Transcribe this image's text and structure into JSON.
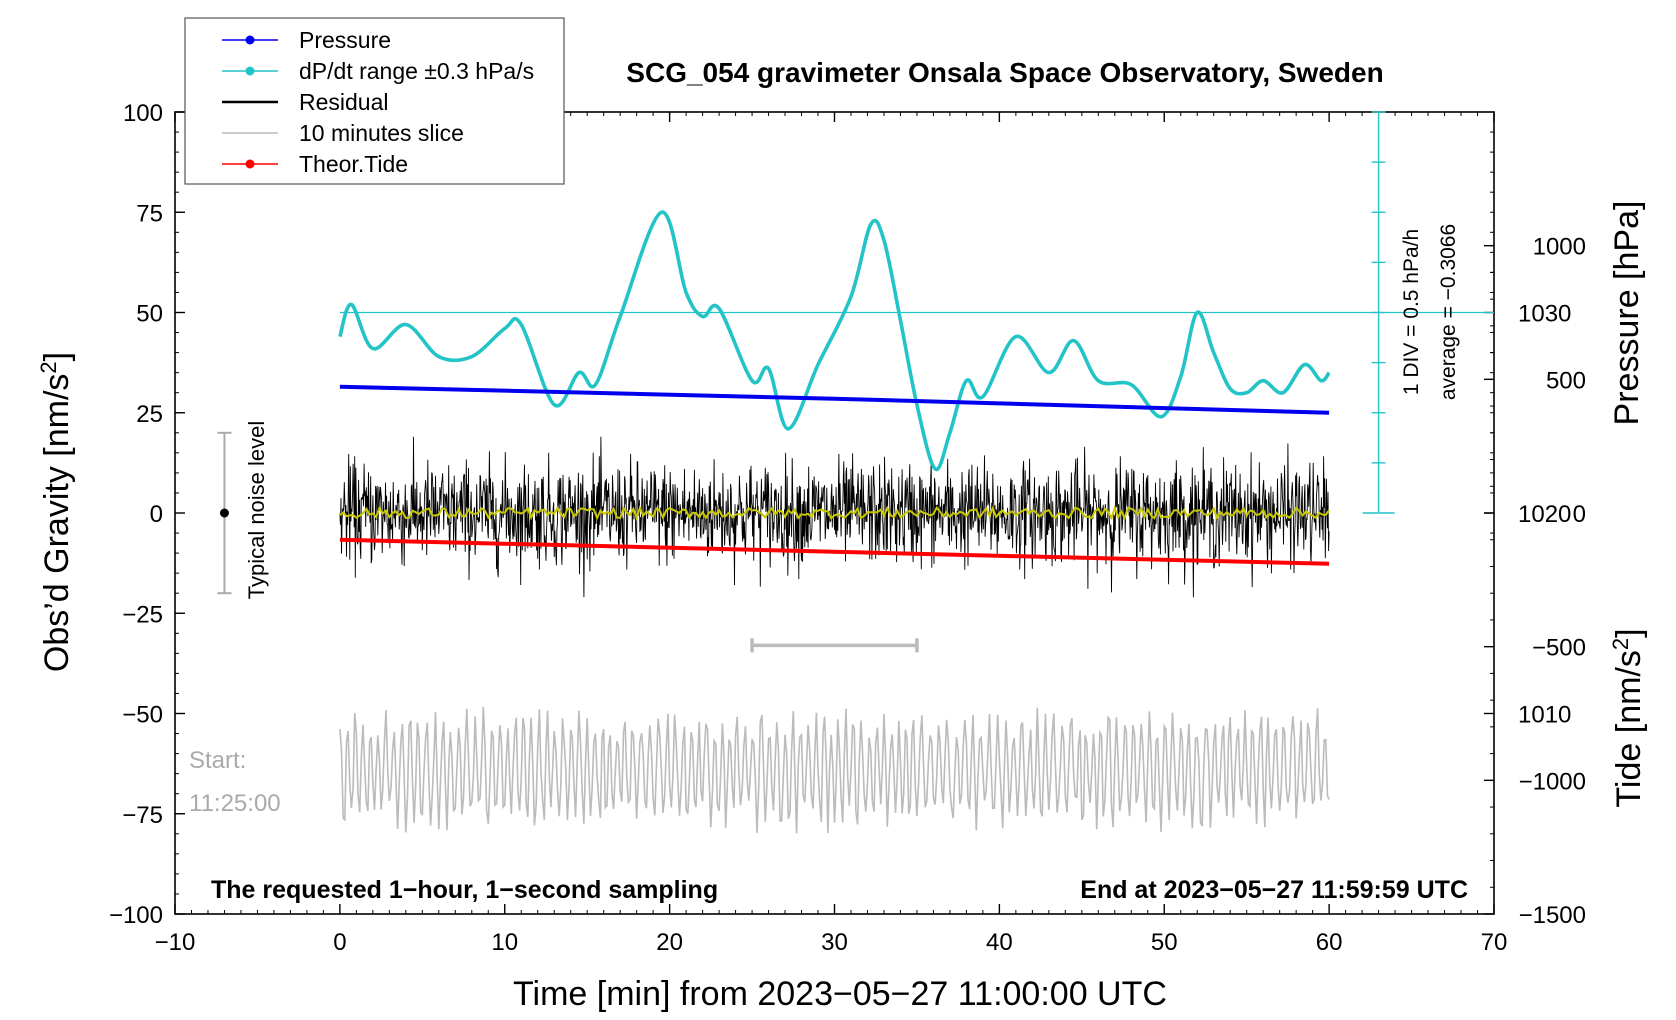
{
  "chart_data": {
    "type": "line",
    "title": "SCG_054 gravimeter Onsala Space Observatory, Sweden",
    "xlabel": "Time [min] from 2023−05−27 11:00:00 UTC",
    "ylabel_left": "Obs’d Gravity [nm/s",
    "ylabel_left_sup": "2",
    "ylabel_left_close": "]",
    "ylabel_pressure": "Pressure [hPa]",
    "ylabel_tide": "Tide [nm/s",
    "ylabel_tide_sup": "2",
    "ylabel_tide_close": "]",
    "xlim": [
      -10,
      70
    ],
    "ylim_gravity": [
      -100,
      100
    ],
    "ylim_tide": [
      -1500,
      1500
    ],
    "pressure_ylim": [
      1000,
      1040
    ],
    "x_ticks": [
      -10,
      0,
      10,
      20,
      30,
      40,
      50,
      60,
      70
    ],
    "x_tick_labels": [
      "−10",
      "0",
      "10",
      "20",
      "30",
      "40",
      "50",
      "60",
      "70"
    ],
    "y_ticks": [
      100,
      75,
      50,
      25,
      0,
      -25,
      -50,
      -75,
      -100
    ],
    "y_tick_labels": [
      "100",
      "75",
      "50",
      "25",
      "0",
      "−25",
      "−50",
      "−75",
      "−100"
    ],
    "pressure_ticks": [
      1030,
      1020,
      1010
    ],
    "pressure_tick_labels": [
      "1030",
      "1020",
      "1010"
    ],
    "tide_ticks": [
      1000,
      500,
      0,
      -500,
      -1000,
      -1500
    ],
    "tide_tick_labels": [
      "1000",
      "500",
      "0",
      "−500",
      "−1000",
      "−1500"
    ],
    "legend": {
      "position": "top-left",
      "entries": [
        {
          "label": "Pressure",
          "color": "#0000ee",
          "marker": true
        },
        {
          "label": "dP/dt range ±0.3 hPa/s",
          "color": "#22c4c8",
          "marker": true
        },
        {
          "label": "Residual",
          "color": "#000000",
          "marker": false
        },
        {
          "label": "10 minutes slice",
          "color": "#bbbbbb",
          "marker": false
        },
        {
          "label": "Theor.Tide",
          "color": "#ff0000",
          "marker": true
        }
      ]
    },
    "series": [
      {
        "name": "Pressure",
        "axis": "pressure",
        "x": [
          0,
          30,
          60
        ],
        "values": [
          1026.3,
          1025.7,
          1025.0
        ]
      },
      {
        "name": "dP/dt",
        "axis": "gravity",
        "x": [
          0,
          0.7,
          2,
          4,
          6,
          8,
          10,
          11,
          13,
          14.5,
          15.5,
          17,
          19.5,
          21,
          22,
          23,
          25,
          26,
          27.2,
          29,
          31,
          32.2,
          33,
          34,
          35,
          36.1,
          37,
          38,
          39,
          41,
          43,
          44.5,
          46,
          48,
          49.8,
          51,
          52,
          53,
          54,
          55,
          56,
          57.2,
          58.5,
          59.5,
          60
        ],
        "values": [
          44,
          52,
          41,
          47,
          39,
          39,
          46,
          47,
          27,
          35,
          32,
          49,
          75,
          55,
          49,
          51,
          33,
          36,
          21,
          37,
          54,
          72,
          68,
          48,
          27,
          11,
          20,
          33,
          29,
          44,
          35,
          43,
          33,
          32,
          24,
          34,
          50,
          40,
          31,
          30,
          33,
          30,
          37,
          33,
          35
        ]
      },
      {
        "name": "Residual",
        "axis": "gravity",
        "x_range": [
          0,
          60
        ],
        "amplitude": 15,
        "mean": 0
      },
      {
        "name": "Residual smooth",
        "axis": "gravity",
        "color": "#c8c800",
        "x_range": [
          0,
          60
        ],
        "mean": 0
      },
      {
        "name": "10 minutes slice",
        "axis": "gravity",
        "x_range": [
          0,
          60
        ],
        "mean": -64,
        "amplitude": 14
      },
      {
        "name": "Theor.Tide",
        "axis": "tide",
        "x": [
          0,
          60
        ],
        "values": [
          -100,
          -190
        ]
      }
    ],
    "annotations": {
      "noise_label": "Typical noise level",
      "noise_bar": {
        "x": -7,
        "center": 0,
        "half_range": 20
      },
      "slice_bracket": {
        "x_start": 25,
        "x_end": 35,
        "y": -33
      },
      "start_label_1": "Start:",
      "start_label_2": "11:25:00",
      "div_label": "1 DIV = 0.5 hPa/h",
      "average_label": "average = −0.3066",
      "dpdt_scale": {
        "x": 63,
        "y_top": 100,
        "y_bottom": 0,
        "divisions": 8
      },
      "dpdt_ref_line": 50,
      "bottom_left": "The requested 1−hour, 1−second sampling",
      "bottom_right": "End at 2023−05−27 11:59:59 UTC"
    },
    "colors": {
      "pressure": "#0000ee",
      "dpdt": "#22c4c8",
      "residual": "#000000",
      "residual_smooth": "#c8c800",
      "slice": "#bbbbbb",
      "tide": "#ff0000",
      "start_label": "#aaaaaa"
    }
  }
}
